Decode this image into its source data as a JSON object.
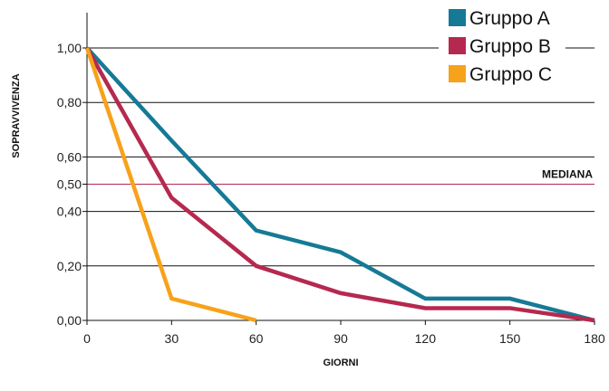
{
  "chart_data": {
    "type": "line",
    "xlabel": "GIORNI",
    "ylabel": "SOPRAVVIVENZA",
    "xlim": [
      0,
      180
    ],
    "ylim": [
      0,
      1
    ],
    "x_ticks": [
      0,
      30,
      60,
      90,
      120,
      150,
      180
    ],
    "x_tick_labels": [
      "0",
      "30",
      "60",
      "90",
      "120",
      "150",
      "180"
    ],
    "y_ticks": [
      0,
      0.2,
      0.4,
      0.6,
      0.8,
      1.0
    ],
    "y_tick_labels": [
      "0,00",
      "0,20",
      "0,40",
      "0,60",
      "0,80",
      "1,00"
    ],
    "grid": "horizontal",
    "legend_position": "top-right",
    "reference_line": {
      "y": 0.5,
      "y_label": "0,50",
      "label": "MEDIANA",
      "color": "#b5294f"
    },
    "series": [
      {
        "name": "Gruppo A",
        "color": "#157a96",
        "points": [
          [
            0,
            1.0
          ],
          [
            30,
            0.66
          ],
          [
            60,
            0.33
          ],
          [
            90,
            0.25
          ],
          [
            120,
            0.08
          ],
          [
            150,
            0.08
          ],
          [
            180,
            0.0
          ]
        ]
      },
      {
        "name": "Gruppo B",
        "color": "#b5294f",
        "points": [
          [
            0,
            1.0
          ],
          [
            30,
            0.45
          ],
          [
            60,
            0.2
          ],
          [
            90,
            0.1
          ],
          [
            120,
            0.045
          ],
          [
            150,
            0.045
          ],
          [
            180,
            0.0
          ]
        ]
      },
      {
        "name": "Gruppo C",
        "color": "#f7a21b",
        "points": [
          [
            0,
            1.0
          ],
          [
            30,
            0.08
          ],
          [
            60,
            0.0
          ]
        ]
      }
    ]
  }
}
